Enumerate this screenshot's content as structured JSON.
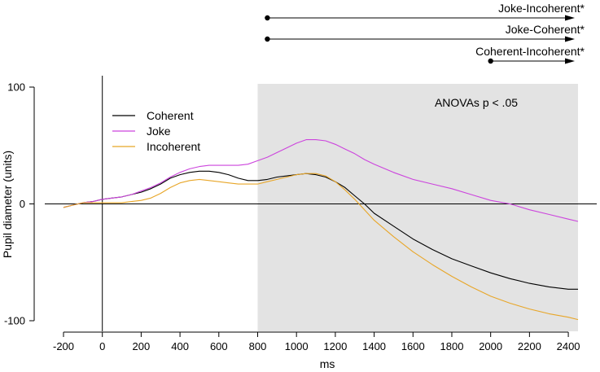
{
  "chart_data": {
    "type": "line",
    "xlabel": "ms",
    "ylabel": "Pupil diameter (units)",
    "xlim": [
      -200,
      2450
    ],
    "ylim": [
      -100,
      100
    ],
    "x_ticks": [
      -200,
      0,
      200,
      400,
      600,
      800,
      1000,
      1200,
      1400,
      1600,
      1800,
      2000,
      2200,
      2400
    ],
    "y_ticks": [
      -100,
      0,
      100
    ],
    "grid": false,
    "legend": "top-left",
    "shaded_region": {
      "x_start": 800,
      "x_end": 2450,
      "color": "#e3e3e3",
      "label": "ANOVAs p < .05"
    },
    "reference_lines": {
      "x": 0,
      "y": 0
    },
    "series": [
      {
        "name": "Coherent",
        "color": "#000000",
        "x": [
          -200,
          -150,
          -100,
          -50,
          0,
          50,
          100,
          150,
          200,
          250,
          300,
          350,
          400,
          450,
          500,
          550,
          600,
          650,
          700,
          750,
          800,
          850,
          900,
          950,
          1000,
          1050,
          1100,
          1150,
          1200,
          1250,
          1300,
          1350,
          1400,
          1500,
          1600,
          1700,
          1800,
          1900,
          2000,
          2100,
          2200,
          2300,
          2400,
          2450
        ],
        "y": [
          -3,
          -1,
          1,
          2,
          4,
          5,
          6,
          8,
          10,
          13,
          17,
          22,
          25,
          27,
          28,
          28,
          27,
          25,
          22,
          20,
          20,
          21,
          23,
          24,
          25,
          26,
          25,
          23,
          19,
          14,
          7,
          0,
          -8,
          -19,
          -30,
          -39,
          -47,
          -53,
          -59,
          -64,
          -68,
          -71,
          -73,
          -73
        ]
      },
      {
        "name": "Joke",
        "color": "#cc44dd",
        "x": [
          -200,
          -150,
          -100,
          -50,
          0,
          50,
          100,
          150,
          200,
          250,
          300,
          350,
          400,
          450,
          500,
          550,
          600,
          650,
          700,
          750,
          800,
          850,
          900,
          950,
          1000,
          1050,
          1100,
          1150,
          1200,
          1250,
          1300,
          1350,
          1400,
          1500,
          1600,
          1700,
          1800,
          1900,
          2000,
          2100,
          2200,
          2300,
          2400,
          2450
        ],
        "y": [
          -3,
          -1,
          1,
          2,
          4,
          5,
          6,
          8,
          11,
          14,
          18,
          23,
          27,
          30,
          32,
          33,
          33,
          33,
          33,
          34,
          37,
          40,
          44,
          48,
          52,
          55,
          55,
          54,
          51,
          47,
          43,
          38,
          34,
          27,
          21,
          17,
          13,
          8,
          3,
          0,
          -5,
          -9,
          -13,
          -15
        ]
      },
      {
        "name": "Incoherent",
        "color": "#e8a628",
        "x": [
          -200,
          -150,
          -100,
          -50,
          0,
          50,
          100,
          150,
          200,
          250,
          300,
          350,
          400,
          450,
          500,
          550,
          600,
          650,
          700,
          750,
          800,
          850,
          900,
          950,
          1000,
          1050,
          1100,
          1150,
          1200,
          1250,
          1300,
          1350,
          1400,
          1500,
          1600,
          1700,
          1800,
          1900,
          2000,
          2100,
          2200,
          2300,
          2400,
          2450
        ],
        "y": [
          -3,
          -1,
          1,
          1,
          1,
          1,
          1,
          2,
          3,
          5,
          9,
          14,
          18,
          20,
          21,
          20,
          19,
          18,
          17,
          17,
          17,
          19,
          21,
          23,
          25,
          26,
          26,
          24,
          19,
          12,
          4,
          -5,
          -14,
          -28,
          -41,
          -52,
          -62,
          -71,
          -79,
          -85,
          -90,
          -94,
          -97,
          -99
        ]
      }
    ],
    "contrasts": [
      {
        "label": "Joke-Incoherent*",
        "x_start": 850,
        "x_end": 2450
      },
      {
        "label": "Joke-Coherent*",
        "x_start": 850,
        "x_end": 2450
      },
      {
        "label": "Coherent-Incoherent*",
        "x_start": 2000,
        "x_end": 2450
      }
    ]
  }
}
